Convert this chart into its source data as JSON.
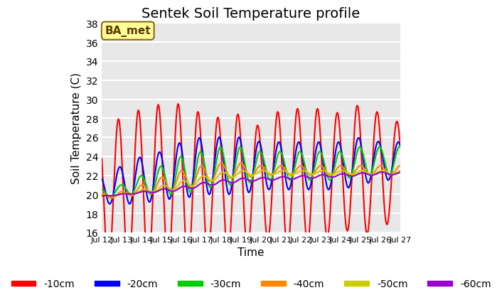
{
  "title": "Sentek Soil Temperature profile",
  "ylabel": "Soil Temperature (C)",
  "xlabel": "Time",
  "ylim": [
    16,
    38
  ],
  "xlim": [
    0,
    360
  ],
  "bg_color": "#e8e8e8",
  "fig_bg_color": "#ffffff",
  "grid_color": "#ffffff",
  "annotation_text": "BA_met",
  "annotation_bg": "#ffff99",
  "annotation_border": "#8B6914",
  "legend_labels": [
    "-10cm",
    "-20cm",
    "-30cm",
    "-40cm",
    "-50cm",
    "-60cm"
  ],
  "line_colors": [
    "#ff0000",
    "#0000ff",
    "#00cc00",
    "#ff8800",
    "#cccc00",
    "#9900cc"
  ],
  "line_widths": [
    1.5,
    1.5,
    1.5,
    1.5,
    1.5,
    1.5
  ],
  "xtick_positions": [
    0,
    24,
    48,
    72,
    96,
    120,
    144,
    168,
    192,
    216,
    240,
    264,
    288,
    312,
    336,
    360
  ],
  "xtick_labels": [
    "Jul 12",
    "Jul 13",
    "Jul 14",
    "Jul 15",
    "Jul 16",
    "Jul 17",
    "Jul 18",
    "Jul 19",
    "Jul 20",
    "Jul 21",
    "Jul 22",
    "Jul 23",
    "Jul 24",
    "Jul 25",
    "Jul 26",
    "Jul 27"
  ],
  "ytick_positions": [
    16,
    18,
    20,
    22,
    24,
    26,
    28,
    30,
    32,
    34,
    36,
    38
  ],
  "title_fontsize": 14,
  "axis_label_fontsize": 11
}
